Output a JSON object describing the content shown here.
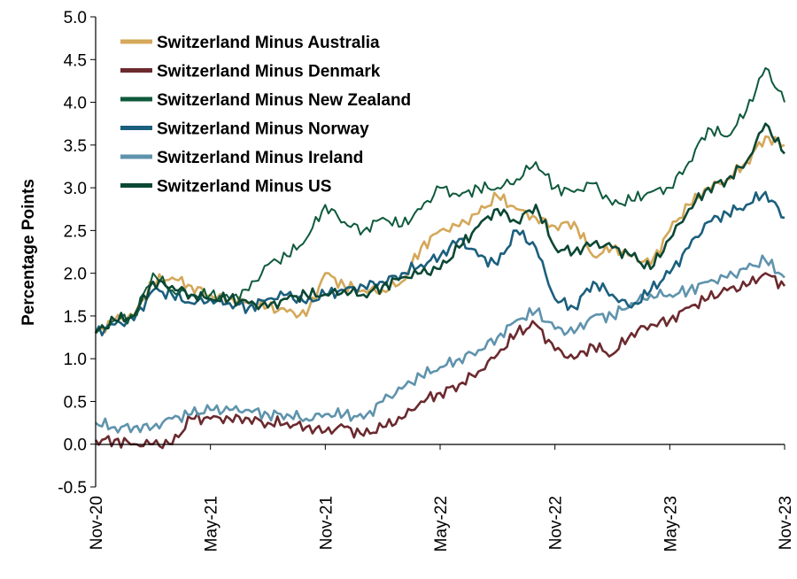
{
  "chart_data": {
    "type": "line",
    "ylabel": "Percentage Points",
    "ylim": [
      -0.5,
      5.0
    ],
    "yticks": [
      "-0.5",
      "0.0",
      "0.5",
      "1.0",
      "1.5",
      "2.0",
      "2.5",
      "3.0",
      "3.5",
      "4.0",
      "4.5",
      "5.0"
    ],
    "xlim": [
      "2020-11",
      "2023-11"
    ],
    "xticks": [
      "Nov-20",
      "May-21",
      "Nov-21",
      "May-22",
      "Nov-22",
      "May-23",
      "Nov-23"
    ],
    "grid": false,
    "legend_position": "top-left",
    "x": [
      "2020-11",
      "2020-12",
      "2021-01",
      "2021-02",
      "2021-03",
      "2021-04",
      "2021-05",
      "2021-06",
      "2021-07",
      "2021-08",
      "2021-09",
      "2021-10",
      "2021-11",
      "2021-12",
      "2022-01",
      "2022-02",
      "2022-03",
      "2022-04",
      "2022-05",
      "2022-06",
      "2022-07",
      "2022-08",
      "2022-09",
      "2022-10",
      "2022-11",
      "2022-12",
      "2023-01",
      "2023-02",
      "2023-03",
      "2023-04",
      "2023-05",
      "2023-06",
      "2023-07",
      "2023-08",
      "2023-09",
      "2023-10",
      "2023-11"
    ],
    "series": [
      {
        "name": "Switzerland Minus Australia",
        "color": "#d4a85a",
        "values": [
          1.3,
          1.45,
          1.5,
          1.9,
          1.95,
          1.85,
          1.75,
          1.7,
          1.65,
          1.6,
          1.55,
          1.5,
          2.0,
          1.85,
          1.8,
          1.8,
          1.9,
          2.3,
          2.5,
          2.55,
          2.7,
          2.9,
          2.75,
          2.65,
          2.55,
          2.6,
          2.2,
          2.3,
          2.2,
          2.1,
          2.5,
          2.8,
          3.0,
          3.1,
          3.3,
          3.6,
          3.5
        ]
      },
      {
        "name": "Switzerland Minus Denmark",
        "color": "#6b2a2e",
        "values": [
          0.05,
          0.05,
          0.0,
          0.0,
          0.0,
          0.3,
          0.3,
          0.3,
          0.3,
          0.25,
          0.25,
          0.2,
          0.15,
          0.2,
          0.1,
          0.2,
          0.3,
          0.5,
          0.6,
          0.7,
          0.85,
          1.05,
          1.3,
          1.4,
          1.1,
          1.0,
          1.15,
          1.05,
          1.3,
          1.4,
          1.45,
          1.6,
          1.7,
          1.8,
          1.85,
          2.0,
          1.85
        ]
      },
      {
        "name": "Switzerland Minus New Zealand",
        "color": "#0f5a3c",
        "values": [
          1.3,
          1.45,
          1.5,
          2.0,
          1.8,
          1.75,
          1.75,
          1.7,
          1.8,
          2.1,
          2.2,
          2.4,
          2.8,
          2.6,
          2.5,
          2.65,
          2.55,
          2.75,
          3.0,
          2.9,
          3.0,
          3.0,
          3.1,
          3.3,
          3.0,
          2.95,
          3.05,
          2.8,
          2.85,
          2.95,
          3.0,
          3.3,
          3.7,
          3.6,
          3.9,
          4.4,
          4.0
        ]
      },
      {
        "name": "Switzerland Minus Norway",
        "color": "#1b5f7e",
        "values": [
          1.3,
          1.4,
          1.45,
          1.8,
          1.75,
          1.65,
          1.7,
          1.65,
          1.6,
          1.7,
          1.75,
          1.65,
          1.75,
          1.8,
          1.85,
          1.9,
          2.0,
          2.1,
          2.2,
          2.4,
          2.2,
          2.1,
          2.5,
          2.3,
          1.7,
          1.6,
          1.9,
          1.75,
          1.6,
          1.8,
          2.0,
          2.3,
          2.6,
          2.7,
          2.8,
          2.95,
          2.65
        ]
      },
      {
        "name": "Switzerland Minus Ireland",
        "color": "#5f93ac",
        "values": [
          0.25,
          0.2,
          0.2,
          0.2,
          0.3,
          0.35,
          0.4,
          0.4,
          0.4,
          0.35,
          0.35,
          0.3,
          0.35,
          0.35,
          0.3,
          0.5,
          0.65,
          0.8,
          0.9,
          1.0,
          1.1,
          1.25,
          1.45,
          1.55,
          1.35,
          1.3,
          1.5,
          1.5,
          1.65,
          1.75,
          1.75,
          1.8,
          1.9,
          1.95,
          2.05,
          2.15,
          1.95
        ]
      },
      {
        "name": "Switzerland Minus US",
        "color": "#0b4734",
        "values": [
          1.3,
          1.45,
          1.5,
          1.9,
          1.85,
          1.75,
          1.7,
          1.7,
          1.65,
          1.6,
          1.7,
          1.75,
          1.75,
          1.8,
          1.75,
          1.85,
          1.95,
          2.0,
          2.05,
          2.3,
          2.55,
          2.75,
          2.6,
          2.8,
          2.3,
          2.25,
          2.35,
          2.3,
          2.2,
          2.05,
          2.4,
          2.75,
          3.0,
          3.1,
          3.3,
          3.75,
          3.4
        ]
      }
    ]
  }
}
